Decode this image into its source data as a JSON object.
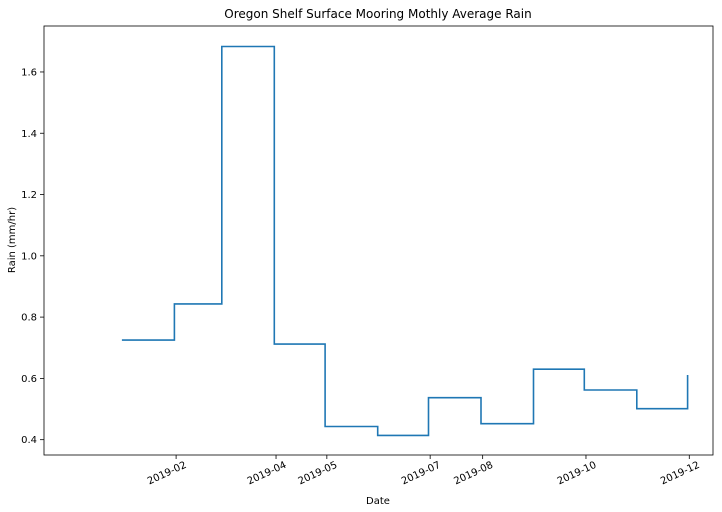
{
  "chart_data": {
    "type": "line",
    "step": "post",
    "title": "Oregon Shelf Surface Mooring Mothly Average Rain",
    "xlabel": "Date",
    "ylabel": "Rain (mm/hr)",
    "x_ticks": [
      "2019-02",
      "2019-04",
      "2019-05",
      "2019-07",
      "2019-08",
      "2019-10",
      "2019-12"
    ],
    "y_ticks": [
      "0.4",
      "0.6",
      "0.8",
      "1.0",
      "1.2",
      "1.4",
      "1.6"
    ],
    "ylim": [
      0.35,
      1.75
    ],
    "xlim": [
      "2018-11-15",
      "2019-12-15"
    ],
    "grid": false,
    "series": [
      {
        "color": "#1f77b4",
        "x": [
          "2018-12-31",
          "2019-01-31",
          "2019-02-28",
          "2019-03-31",
          "2019-04-30",
          "2019-05-31",
          "2019-06-30",
          "2019-07-31",
          "2019-08-31",
          "2019-09-30",
          "2019-10-31",
          "2019-11-30"
        ],
        "values": [
          0.725,
          0.843,
          1.683,
          0.712,
          0.443,
          0.414,
          0.537,
          0.452,
          0.63,
          0.562,
          0.501,
          0.611
        ]
      }
    ]
  }
}
